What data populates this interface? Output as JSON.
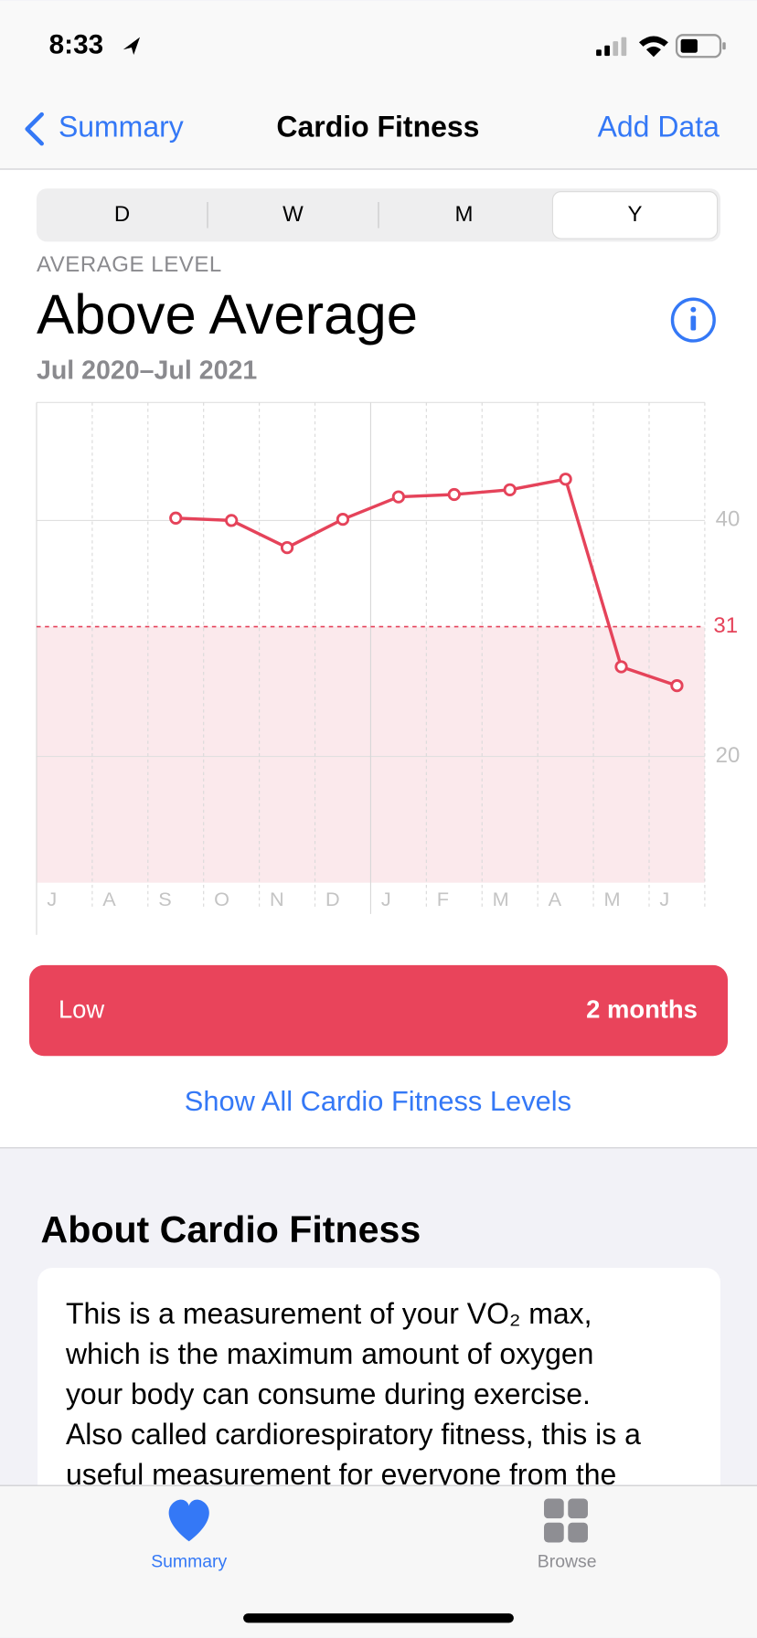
{
  "status": {
    "time": "8:33"
  },
  "nav": {
    "back": "Summary",
    "title": "Cardio Fitness",
    "action": "Add Data"
  },
  "segments": {
    "items": [
      "D",
      "W",
      "M",
      "Y"
    ],
    "selected": 3
  },
  "header": {
    "label": "AVERAGE LEVEL",
    "level": "Above Average",
    "range": "Jul 2020–Jul 2021"
  },
  "chart_data": {
    "type": "line",
    "categories": [
      "J",
      "A",
      "S",
      "O",
      "N",
      "D",
      "J",
      "F",
      "M",
      "A",
      "M",
      "J"
    ],
    "values": [
      null,
      null,
      40.2,
      40.0,
      37.7,
      40.1,
      42.0,
      42.2,
      42.6,
      43.5,
      27.6,
      26.0
    ],
    "color": "#e5435a",
    "ylim": [
      9.3,
      50
    ],
    "yticks": [
      20,
      40
    ],
    "reference_line": 31,
    "grid": true
  },
  "low_bar": {
    "label": "Low",
    "duration": "2 months"
  },
  "link": "Show All Cardio Fitness Levels",
  "about": {
    "title": "About Cardio Fitness",
    "lines": [
      "This is a measurement of your VO₂ max,",
      "which is the maximum amount of oxygen",
      "your body can consume during exercise.",
      "Also called cardiorespiratory fitness, this is a",
      "useful measurement for everyone from the"
    ]
  },
  "tabs": {
    "items": [
      "Summary",
      "Browse"
    ],
    "selected": 0
  }
}
